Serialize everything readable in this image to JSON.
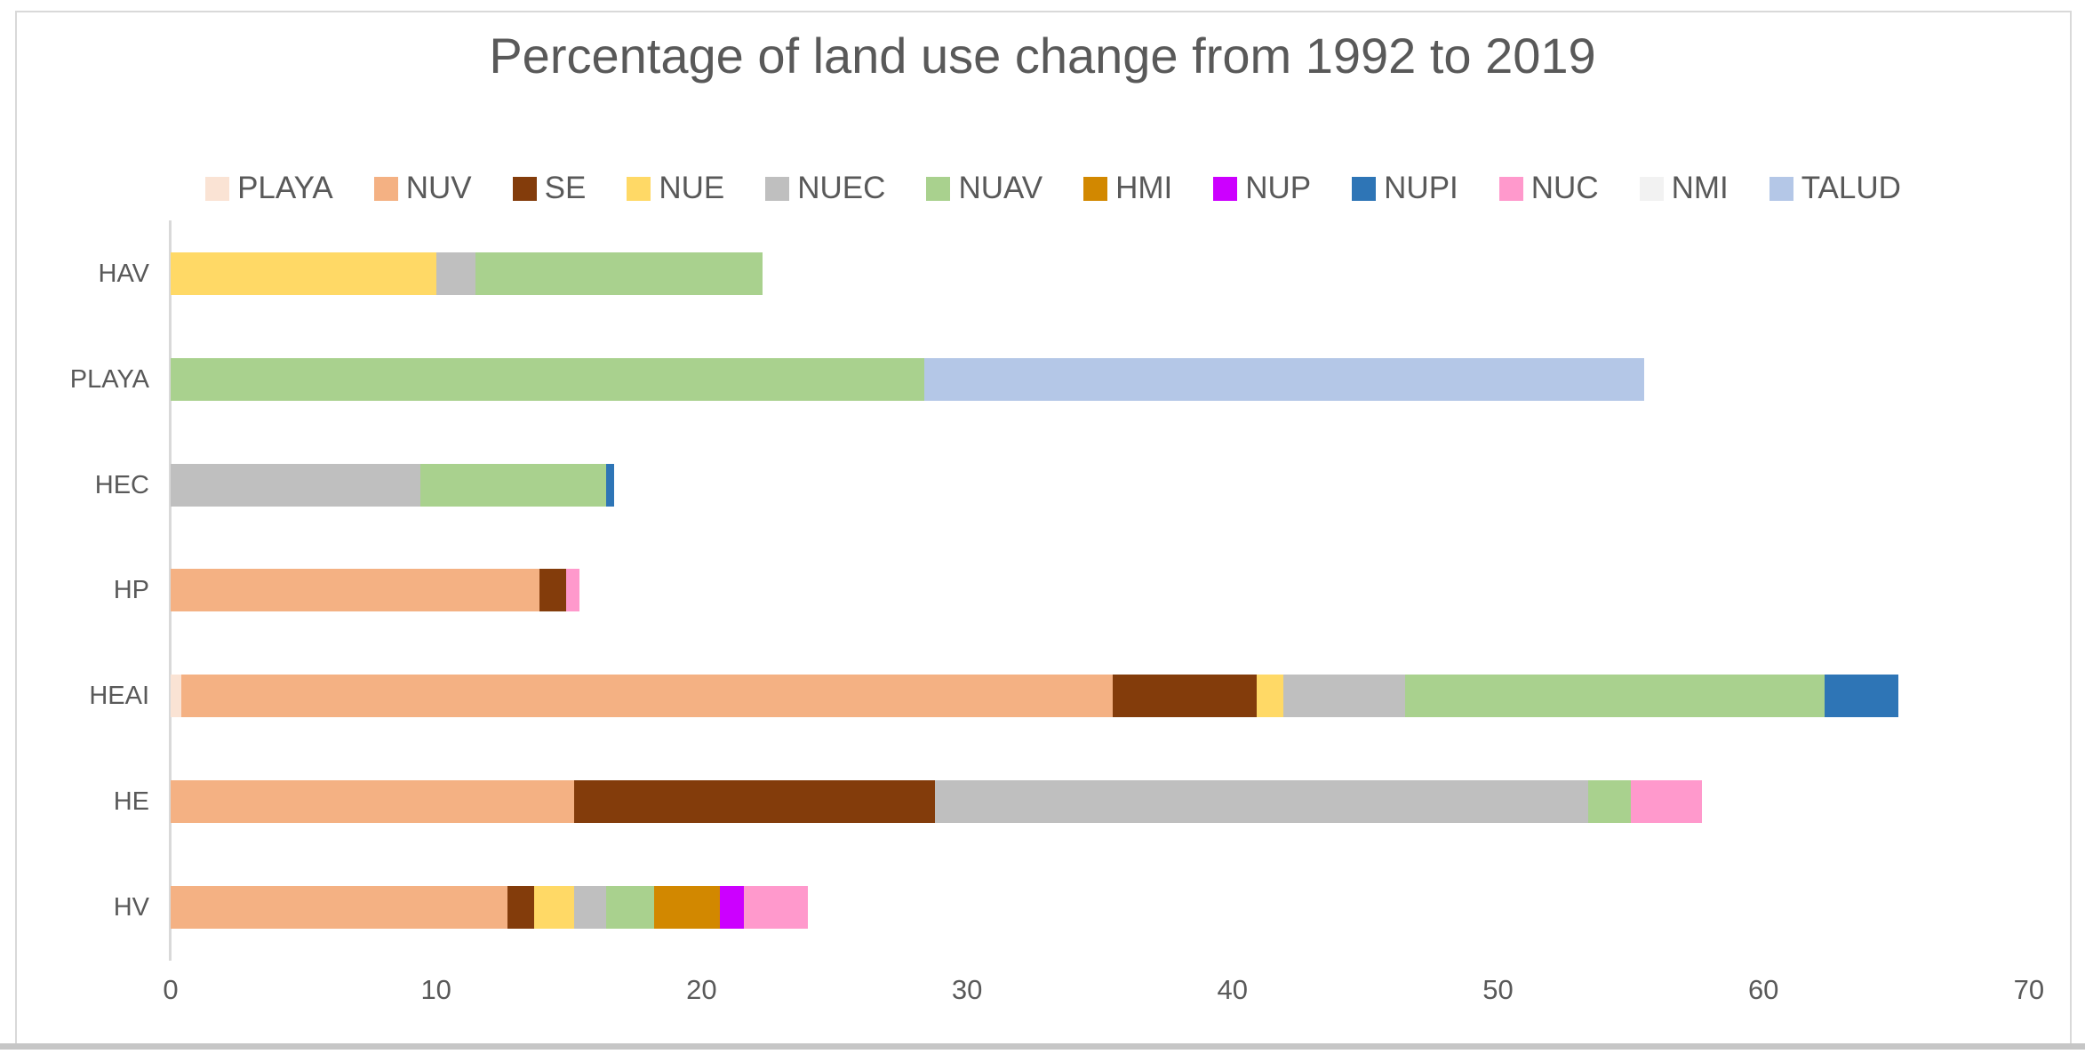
{
  "title": "Percentage of land use change from 1992 to 2019",
  "colors": {
    "text": "#595959",
    "axis_line": "#D9D9D9",
    "frame_border": "#D9D9D9",
    "bottom_strip": "#C6C6C6",
    "background": "#FFFFFF"
  },
  "chart_data": {
    "type": "bar",
    "orientation": "horizontal",
    "stacked": true,
    "title": "Percentage of land use change from 1992 to 2019",
    "legend_position": "top",
    "grid": false,
    "categories": [
      "HAV",
      "PLAYA",
      "HEC",
      "HP",
      "HEAI",
      "HE",
      "HV"
    ],
    "series": [
      {
        "name": "PLAYA",
        "color": "#FAE3D4",
        "values": [
          0,
          0,
          0,
          0,
          0.4,
          0,
          0
        ]
      },
      {
        "name": "NUV",
        "color": "#F4B183",
        "values": [
          0,
          0,
          0,
          13.9,
          35.1,
          15.2,
          12.7
        ]
      },
      {
        "name": "SE",
        "color": "#833C0B",
        "values": [
          0,
          0,
          0,
          1.0,
          5.4,
          13.6,
          1.0
        ]
      },
      {
        "name": "NUE",
        "color": "#FFD966",
        "values": [
          10.0,
          0,
          0,
          0,
          1.0,
          0,
          1.5
        ]
      },
      {
        "name": "NUEC",
        "color": "#BFBFBF",
        "values": [
          1.5,
          0,
          9.4,
          0,
          4.6,
          24.6,
          1.2
        ]
      },
      {
        "name": "NUAV",
        "color": "#A9D18E",
        "values": [
          10.8,
          28.4,
          7.0,
          0,
          15.8,
          1.6,
          1.8
        ]
      },
      {
        "name": "HMI",
        "color": "#D28800",
        "values": [
          0,
          0,
          0,
          0,
          0,
          0,
          2.5
        ]
      },
      {
        "name": "NUP",
        "color": "#CC00FF",
        "values": [
          0,
          0,
          0,
          0,
          0,
          0,
          0.9
        ]
      },
      {
        "name": "NUPI",
        "color": "#2E75B6",
        "values": [
          0,
          0,
          0.3,
          0,
          2.8,
          0,
          0
        ]
      },
      {
        "name": "NUC",
        "color": "#FF99CC",
        "values": [
          0,
          0,
          0,
          0.5,
          0,
          2.7,
          2.4
        ]
      },
      {
        "name": "NMI",
        "color": "#F2F2F2",
        "values": [
          0,
          0,
          0,
          0,
          0,
          0,
          0
        ]
      },
      {
        "name": "TALUD",
        "color": "#B4C7E7",
        "values": [
          0,
          27.1,
          0,
          0,
          0,
          0,
          0
        ]
      }
    ],
    "x_axis": {
      "min": 0,
      "max": 70,
      "tick_step": 10,
      "ticks": [
        0,
        10,
        20,
        30,
        40,
        50,
        60,
        70
      ]
    }
  }
}
